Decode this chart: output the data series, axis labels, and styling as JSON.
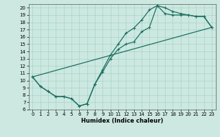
{
  "xlabel": "Humidex (Indice chaleur)",
  "bg_color": "#cce8e0",
  "line_color": "#1a6e60",
  "xlim": [
    -0.5,
    23.5
  ],
  "ylim": [
    6,
    20.5
  ],
  "xticks": [
    0,
    1,
    2,
    3,
    4,
    5,
    6,
    7,
    8,
    9,
    10,
    11,
    12,
    13,
    14,
    15,
    16,
    17,
    18,
    19,
    20,
    21,
    22,
    23
  ],
  "yticks": [
    6,
    7,
    8,
    9,
    10,
    11,
    12,
    13,
    14,
    15,
    16,
    17,
    18,
    19,
    20
  ],
  "line1_x": [
    0,
    1,
    2,
    3,
    4,
    5,
    6,
    7,
    8,
    9,
    10,
    11,
    12,
    13,
    14,
    15,
    16,
    17,
    18,
    19,
    20,
    21,
    22,
    23
  ],
  "line1_y": [
    10.5,
    9.2,
    8.5,
    7.8,
    7.8,
    7.5,
    6.5,
    6.8,
    9.5,
    11.2,
    13.0,
    14.3,
    15.0,
    15.3,
    16.7,
    17.3,
    20.3,
    19.2,
    19.0,
    19.0,
    19.0,
    18.8,
    18.8,
    17.3
  ],
  "line2_x": [
    0,
    1,
    2,
    3,
    4,
    5,
    6,
    7,
    8,
    9,
    10,
    11,
    12,
    13,
    14,
    15,
    16,
    17,
    18,
    19,
    20,
    21,
    22,
    23
  ],
  "line2_y": [
    10.5,
    9.2,
    8.5,
    7.8,
    7.8,
    7.5,
    6.5,
    6.8,
    9.5,
    11.5,
    13.5,
    15.0,
    16.5,
    17.2,
    18.3,
    19.7,
    20.3,
    20.0,
    19.5,
    19.2,
    19.0,
    18.8,
    18.8,
    17.3
  ],
  "line3_x": [
    0,
    23
  ],
  "line3_y": [
    10.5,
    17.3
  ]
}
